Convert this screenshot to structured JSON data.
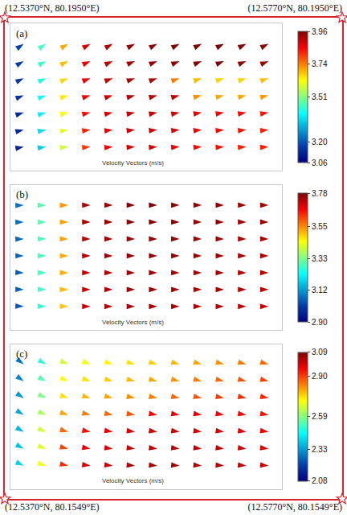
{
  "corners": {
    "top_left": "(12.5370°N, 80.1950°E)",
    "top_right": "(12.5770°N, 80.1950°E)",
    "bottom_left": "(12.5370°N, 80.1549°E)",
    "bottom_right": "(12.5770°N, 80.1549°E)"
  },
  "chart_data": [
    {
      "type": "vector",
      "title": "(a)",
      "xlabel": "Velocity Vectors (m/s)",
      "tick_labels": false,
      "x": [
        0,
        1,
        2,
        3,
        4,
        5,
        6,
        7,
        8,
        9,
        10,
        11
      ],
      "y": [
        0,
        1,
        2,
        3,
        4,
        5,
        6
      ],
      "xlim": [
        -0.6,
        11.6
      ],
      "ylim": [
        -1.4,
        7.2
      ],
      "speed": [
        [
          3.12,
          3.34,
          3.58,
          3.8,
          3.86,
          3.88,
          3.88,
          3.86,
          3.84,
          3.84,
          3.82,
          3.82
        ],
        [
          3.13,
          3.36,
          3.6,
          3.82,
          3.87,
          3.89,
          3.89,
          3.87,
          3.85,
          3.84,
          3.83,
          3.82
        ],
        [
          3.14,
          3.38,
          3.62,
          3.84,
          3.88,
          3.9,
          3.9,
          3.88,
          3.86,
          3.85,
          3.84,
          3.83
        ],
        [
          3.15,
          3.4,
          3.64,
          3.85,
          3.89,
          3.91,
          3.91,
          3.9,
          3.72,
          3.7,
          3.7,
          3.71
        ],
        [
          3.16,
          3.42,
          3.66,
          3.86,
          3.9,
          3.92,
          3.92,
          3.74,
          3.68,
          3.66,
          3.66,
          3.68
        ],
        [
          3.17,
          3.44,
          3.68,
          3.87,
          3.91,
          3.93,
          3.94,
          3.95,
          3.96,
          3.96,
          3.95,
          3.94
        ],
        [
          3.18,
          3.45,
          3.7,
          3.88,
          3.92,
          3.94,
          3.95,
          3.96,
          3.96,
          3.96,
          3.96,
          3.95
        ]
      ],
      "direction": [
        [
          80,
          82,
          84,
          85,
          85,
          86,
          86,
          86,
          86,
          86,
          86,
          86
        ],
        [
          76,
          78,
          80,
          82,
          82,
          83,
          83,
          83,
          83,
          84,
          84,
          84
        ],
        [
          72,
          74,
          76,
          78,
          78,
          79,
          79,
          79,
          80,
          80,
          80,
          80
        ],
        [
          68,
          70,
          72,
          74,
          74,
          75,
          75,
          75,
          76,
          76,
          76,
          76
        ],
        [
          64,
          66,
          68,
          70,
          70,
          71,
          71,
          71,
          72,
          72,
          72,
          72
        ],
        [
          60,
          62,
          64,
          66,
          66,
          67,
          67,
          67,
          68,
          68,
          68,
          68
        ],
        [
          56,
          58,
          60,
          62,
          62,
          63,
          63,
          63,
          64,
          64,
          64,
          64
        ]
      ],
      "colorbar": {
        "range": [
          3.06,
          3.96
        ],
        "ticks": [
          3.06,
          {
            "value": 3.2,
            "label": "3.20"
          },
          3.51,
          3.74,
          3.96
        ]
      }
    },
    {
      "type": "vector",
      "title": "(b)",
      "xlabel": "Velocity Vectors (m/s)",
      "tick_labels": false,
      "x": [
        0,
        1,
        2,
        3,
        4,
        5,
        6,
        7,
        8,
        9,
        10,
        11
      ],
      "y": [
        0,
        1,
        2,
        3,
        4,
        5,
        6
      ],
      "xlim": [
        -0.6,
        11.6
      ],
      "ylim": [
        -1.4,
        7.2
      ],
      "speed": [
        [
          3.04,
          3.27,
          3.5,
          3.71,
          3.73,
          3.74,
          3.74,
          3.74,
          3.73,
          3.73,
          3.72,
          3.72
        ],
        [
          3.05,
          3.28,
          3.51,
          3.72,
          3.74,
          3.75,
          3.75,
          3.75,
          3.74,
          3.74,
          3.73,
          3.73
        ],
        [
          3.05,
          3.28,
          3.52,
          3.72,
          3.74,
          3.75,
          3.75,
          3.75,
          3.74,
          3.74,
          3.73,
          3.73
        ],
        [
          3.06,
          3.29,
          3.52,
          3.73,
          3.75,
          3.76,
          3.76,
          3.76,
          3.75,
          3.75,
          3.74,
          3.74
        ],
        [
          3.06,
          3.29,
          3.53,
          3.73,
          3.75,
          3.76,
          3.76,
          3.76,
          3.75,
          3.75,
          3.74,
          3.74
        ],
        [
          3.07,
          3.3,
          3.53,
          3.74,
          3.76,
          3.77,
          3.77,
          3.77,
          3.76,
          3.76,
          3.75,
          3.75
        ],
        [
          3.07,
          3.3,
          3.54,
          3.74,
          3.76,
          3.77,
          3.78,
          3.77,
          3.76,
          3.76,
          3.75,
          3.75
        ]
      ],
      "direction": [
        [
          92,
          91,
          91,
          90,
          90,
          90,
          90,
          90,
          90,
          90,
          90,
          90
        ],
        [
          91,
          91,
          90,
          90,
          90,
          90,
          90,
          90,
          90,
          90,
          90,
          90
        ],
        [
          91,
          90,
          90,
          90,
          90,
          90,
          90,
          90,
          90,
          90,
          90,
          90
        ],
        [
          90,
          90,
          90,
          90,
          90,
          90,
          90,
          90,
          90,
          90,
          90,
          90
        ],
        [
          89,
          90,
          90,
          90,
          90,
          90,
          90,
          90,
          90,
          90,
          90,
          90
        ],
        [
          89,
          89,
          90,
          90,
          90,
          90,
          90,
          90,
          90,
          90,
          90,
          90
        ],
        [
          88,
          89,
          89,
          90,
          90,
          90,
          90,
          90,
          90,
          90,
          90,
          90
        ]
      ],
      "colorbar": {
        "range": [
          2.9,
          3.78
        ],
        "ticks": [
          {
            "value": 2.9,
            "label": "2.90"
          },
          3.12,
          3.33,
          3.55,
          3.78
        ]
      }
    },
    {
      "type": "vector",
      "title": "(c)",
      "xlabel": "Velocity Vectors (m/s)",
      "tick_labels": false,
      "x": [
        0,
        1,
        2,
        3,
        4,
        5,
        6,
        7,
        8,
        9,
        10,
        11
      ],
      "y": [
        0,
        1,
        2,
        3,
        4,
        5,
        6
      ],
      "xlim": [
        -0.6,
        11.6
      ],
      "ylim": [
        -1.4,
        7.2
      ],
      "speed": [
        [
          2.4,
          2.7,
          2.92,
          3.0,
          3.02,
          3.04,
          3.05,
          3.05,
          3.04,
          3.04,
          3.03,
          3.02
        ],
        [
          2.38,
          2.68,
          2.9,
          2.98,
          3.0,
          3.02,
          3.03,
          3.03,
          3.02,
          3.02,
          3.01,
          3.0
        ],
        [
          2.36,
          2.66,
          2.86,
          2.95,
          2.98,
          3.0,
          3.01,
          3.01,
          3.0,
          3.0,
          2.99,
          2.98
        ],
        [
          2.34,
          2.62,
          2.8,
          2.84,
          2.86,
          2.88,
          2.96,
          2.98,
          2.98,
          2.97,
          2.96,
          2.95
        ],
        [
          2.32,
          2.58,
          2.74,
          2.78,
          2.8,
          2.82,
          2.84,
          2.86,
          2.88,
          2.9,
          2.92,
          2.93
        ],
        [
          2.3,
          2.54,
          2.7,
          2.74,
          2.76,
          2.78,
          2.8,
          2.82,
          2.84,
          2.86,
          2.88,
          2.9
        ],
        [
          2.28,
          2.5,
          2.66,
          2.7,
          2.72,
          2.74,
          2.76,
          2.78,
          2.8,
          2.82,
          2.84,
          2.86
        ]
      ],
      "direction": [
        [
          115,
          108,
          102,
          98,
          96,
          95,
          95,
          95,
          95,
          95,
          95,
          95
        ],
        [
          118,
          110,
          104,
          100,
          98,
          97,
          97,
          97,
          97,
          97,
          97,
          97
        ],
        [
          120,
          112,
          106,
          102,
          100,
          99,
          99,
          99,
          99,
          99,
          99,
          99
        ],
        [
          122,
          114,
          108,
          104,
          102,
          100,
          100,
          100,
          100,
          100,
          100,
          100
        ],
        [
          124,
          116,
          110,
          106,
          104,
          102,
          102,
          102,
          102,
          102,
          102,
          102
        ],
        [
          126,
          118,
          112,
          108,
          106,
          104,
          104,
          104,
          104,
          104,
          104,
          104
        ],
        [
          128,
          120,
          114,
          110,
          108,
          106,
          106,
          106,
          106,
          106,
          106,
          106
        ]
      ],
      "colorbar": {
        "range": [
          2.08,
          3.09
        ],
        "ticks": [
          2.08,
          2.33,
          2.59,
          {
            "value": 2.9,
            "label": "2.90"
          },
          3.09
        ]
      }
    }
  ]
}
